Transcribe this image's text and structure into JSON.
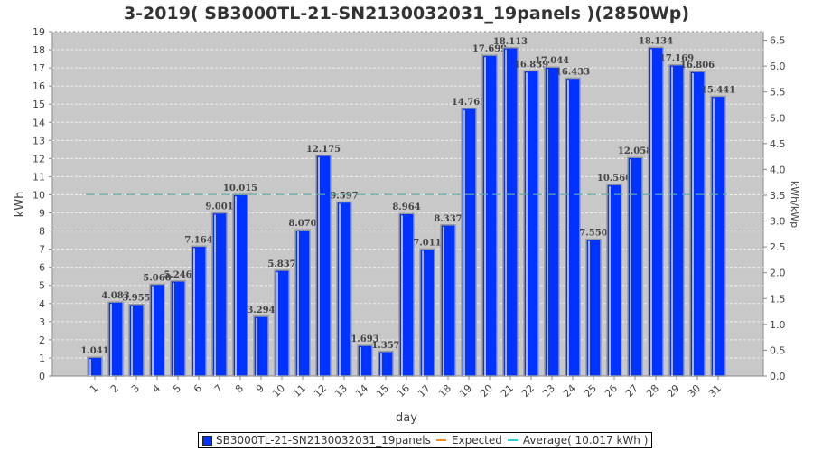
{
  "chart_data": {
    "type": "bar",
    "title": "3-2019( SB3000TL-21-SN2130032031_19panels )(2850Wp)",
    "xlabel": "day",
    "ylabel": "kWh",
    "y2label": "kWh/kWp",
    "ylim": [
      0,
      19
    ],
    "y2lim": [
      0,
      6.667
    ],
    "yticks": [
      0,
      1,
      2,
      3,
      4,
      5,
      6,
      7,
      8,
      9,
      10,
      11,
      12,
      13,
      14,
      15,
      16,
      17,
      18,
      19
    ],
    "y2ticks": [
      "0.0",
      "0.5",
      "1.0",
      "1.5",
      "2.0",
      "2.5",
      "3.0",
      "3.5",
      "4.0",
      "4.5",
      "5.0",
      "5.5",
      "6.0",
      "6.5"
    ],
    "categories": [
      "1",
      "2",
      "3",
      "4",
      "5",
      "6",
      "7",
      "8",
      "9",
      "10",
      "11",
      "12",
      "13",
      "14",
      "15",
      "16",
      "17",
      "18",
      "19",
      "20",
      "21",
      "22",
      "23",
      "24",
      "25",
      "26",
      "27",
      "28",
      "29",
      "30",
      "31"
    ],
    "series": [
      {
        "name": "SB3000TL-21-SN2130032031_19panels",
        "color": "#0033ff",
        "values": [
          1.041,
          4.083,
          3.955,
          5.06,
          5.246,
          7.164,
          9.001,
          10.015,
          3.294,
          5.837,
          8.07,
          12.175,
          9.597,
          1.693,
          1.357,
          8.964,
          7.011,
          8.337,
          14.765,
          17.699,
          18.113,
          16.839,
          17.044,
          16.433,
          7.55,
          10.566,
          12.058,
          18.134,
          17.169,
          16.806,
          15.441
        ],
        "labels": [
          "1.041",
          "4.083",
          "3.955",
          "5.060",
          "5.246",
          "7.164",
          "9.001",
          "10.015",
          "3.294",
          "5.837",
          "8.070",
          "12.175",
          "9.597",
          "1.693",
          "1.357",
          "8.964",
          "7.011",
          "8.337",
          "14.765",
          "17.699",
          "18.113",
          "16.839",
          "17.044",
          "16.433",
          "7.550",
          "10.566",
          "12.058",
          "18.134",
          "17.169",
          "16.806",
          "15.441"
        ]
      }
    ],
    "average": {
      "value": 10.017,
      "color": "#5fa8a8"
    },
    "legend": {
      "placement": "bottom",
      "items": [
        {
          "label": "SB3000TL-21-SN2130032031_19panels",
          "color": "#0033ff"
        },
        {
          "label": "Expected",
          "color": "#ff8c1a"
        },
        {
          "label": "Average( 10.017 kWh )",
          "color": "#33cccc"
        }
      ]
    },
    "grid": true
  }
}
